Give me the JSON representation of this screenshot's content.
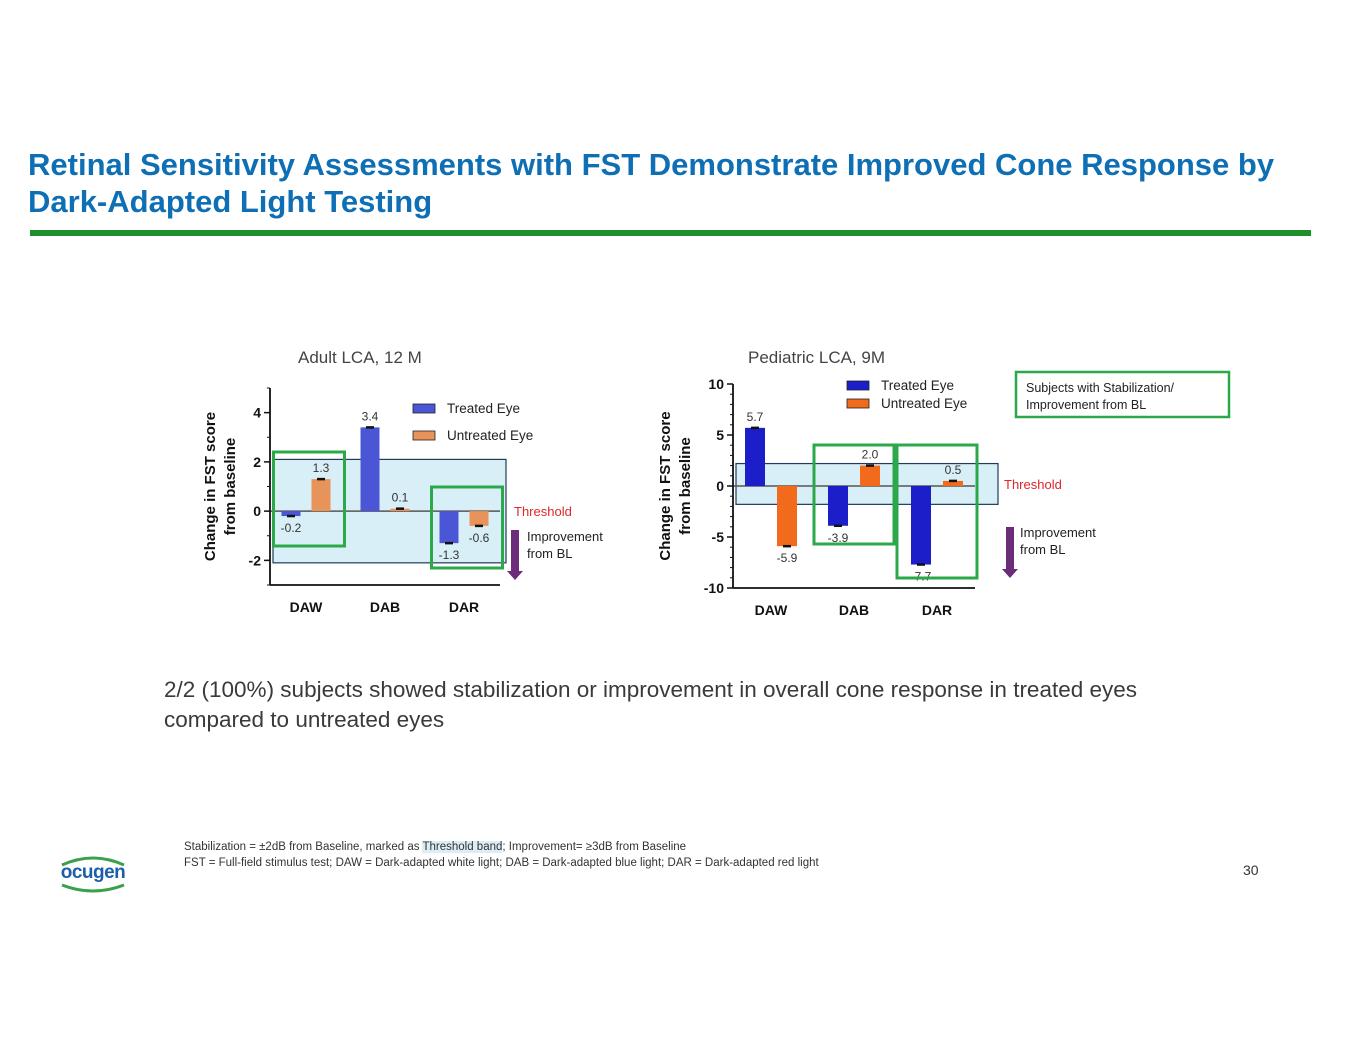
{
  "title": "Retinal Sensitivity Assessments with FST Demonstrate Improved Cone Response by Dark-Adapted Light Testing",
  "colors": {
    "title_blue": "#0e6fb5",
    "rule_green": "#1e8f2a",
    "box_green": "#2ba84a",
    "threshold_red": "#e0262a",
    "band_fill": "#d9eff7",
    "arrow_purple": "#6b2c7a"
  },
  "chart_data": [
    {
      "type": "bar",
      "title": "Adult LCA, 12 M",
      "ylabel": "Change in FST score from baseline",
      "xlabel": "",
      "categories": [
        "DAW",
        "DAB",
        "DAR"
      ],
      "series": [
        {
          "name": "Treated Eye",
          "values": [
            -0.2,
            3.4,
            -1.3
          ],
          "color": "#4a56d6"
        },
        {
          "name": "Untreated Eye",
          "values": [
            1.3,
            0.1,
            -0.6
          ],
          "color": "#e8935a"
        }
      ],
      "value_labels": {
        "Treated Eye": [
          "-0.2",
          "3.4",
          "-1.3"
        ],
        "Untreated Eye": [
          "1.3",
          "0.1",
          "-0.6"
        ]
      },
      "ylim": [
        -3,
        5
      ],
      "yticks": [
        4,
        2,
        0,
        -2
      ],
      "ytick_labels": [
        "4",
        "2",
        "0",
        "-2"
      ],
      "threshold_band": [
        -2.1,
        2.1
      ],
      "threshold_label": "Threshold",
      "highlight_categories": [
        "DAW",
        "DAR"
      ],
      "arrow_label": "Improvement from BL",
      "legend_position": "top-right"
    },
    {
      "type": "bar",
      "title": "Pediatric LCA, 9M",
      "ylabel": "Change in FST score from baseline",
      "xlabel": "",
      "categories": [
        "DAW",
        "DAB",
        "DAR"
      ],
      "series": [
        {
          "name": "Treated Eye",
          "values": [
            5.7,
            -3.9,
            -7.7
          ],
          "color": "#1c1fc9"
        },
        {
          "name": "Untreated Eye",
          "values": [
            -5.9,
            2.0,
            0.5
          ],
          "color": "#f26a1b"
        }
      ],
      "value_labels": {
        "Treated Eye": [
          "5.7",
          "-3.9",
          "-7.7"
        ],
        "Untreated Eye": [
          "-5.9",
          "2.0",
          "0.5"
        ]
      },
      "ylim": [
        -10,
        10
      ],
      "yticks": [
        10,
        5,
        0,
        -5,
        -10
      ],
      "ytick_labels": [
        "10",
        "5",
        "0",
        "-5",
        "-10"
      ],
      "threshold_band": [
        -1.8,
        2.2
      ],
      "threshold_label": "Threshold",
      "highlight_categories": [
        "DAB",
        "DAR"
      ],
      "arrow_label": "Improvement from BL",
      "legend_position": "top-right",
      "callout": "Subjects with Stabilization/ Improvement from BL"
    }
  ],
  "summary": "2/2 (100%) subjects showed stabilization or improvement in overall cone response in treated eyes compared to untreated eyes",
  "footnotes": {
    "line1_before": "Stabilization = ±2dB from Baseline, marked as ",
    "line1_highlight": "Threshold band",
    "line1_after": "; Improvement= ≥3dB from Baseline",
    "line2": "FST = Full-field stimulus test; DAW = Dark-adapted white light; DAB = Dark-adapted blue light; DAR = Dark-adapted red light"
  },
  "page_number": "30",
  "logo_text": "ocugen"
}
